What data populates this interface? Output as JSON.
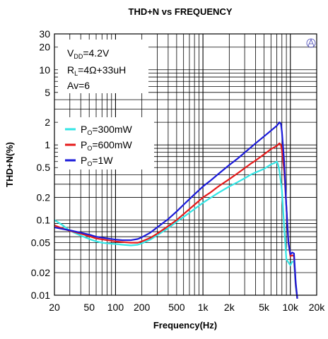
{
  "chart_data": {
    "type": "line",
    "title": "THD+N vs FREQUENCY",
    "xlabel": "Frequency(Hz)",
    "ylabel": "THD+N(%)",
    "x_scale": "log",
    "y_scale": "log",
    "xlim": [
      20,
      20000
    ],
    "ylim": [
      0.01,
      30
    ],
    "grid": true,
    "x_ticks": [
      {
        "v": 20,
        "label": "20"
      },
      {
        "v": 50,
        "label": "50"
      },
      {
        "v": 100,
        "label": "100"
      },
      {
        "v": 200,
        "label": "200"
      },
      {
        "v": 500,
        "label": "500"
      },
      {
        "v": 1000,
        "label": "1k"
      },
      {
        "v": 2000,
        "label": "2k"
      },
      {
        "v": 5000,
        "label": "5k"
      },
      {
        "v": 10000,
        "label": "10k"
      },
      {
        "v": 20000,
        "label": "20k"
      }
    ],
    "y_ticks": [
      {
        "v": 0.01,
        "label": "0.01"
      },
      {
        "v": 0.02,
        "label": "0.02"
      },
      {
        "v": 0.05,
        "label": "0.05"
      },
      {
        "v": 0.1,
        "label": "0.1"
      },
      {
        "v": 0.2,
        "label": "0.2"
      },
      {
        "v": 0.5,
        "label": "0.5"
      },
      {
        "v": 1,
        "label": "1"
      },
      {
        "v": 2,
        "label": "2"
      },
      {
        "v": 5,
        "label": "5"
      },
      {
        "v": 10,
        "label": "10"
      },
      {
        "v": 20,
        "label": "20"
      },
      {
        "v": 30,
        "label": "30"
      }
    ],
    "conditions": {
      "vdd": {
        "main": "V",
        "sub": "DD",
        "rest": "=4.2V"
      },
      "rl": {
        "main": "R",
        "sub": "L",
        "rest": "=4Ω+33uH"
      },
      "av": "Av=6"
    },
    "legend_position": "left-middle",
    "series": [
      {
        "name": {
          "main": "P",
          "sub": "O",
          "rest": "=300mW"
        },
        "color": "#33e5e5",
        "points": [
          [
            20,
            0.1
          ],
          [
            25,
            0.085
          ],
          [
            30,
            0.072
          ],
          [
            40,
            0.062
          ],
          [
            50,
            0.056
          ],
          [
            60,
            0.052
          ],
          [
            70,
            0.05
          ],
          [
            80,
            0.049
          ],
          [
            100,
            0.048
          ],
          [
            120,
            0.047
          ],
          [
            150,
            0.046
          ],
          [
            180,
            0.047
          ],
          [
            200,
            0.049
          ],
          [
            250,
            0.055
          ],
          [
            300,
            0.063
          ],
          [
            400,
            0.078
          ],
          [
            500,
            0.095
          ],
          [
            600,
            0.11
          ],
          [
            700,
            0.125
          ],
          [
            800,
            0.14
          ],
          [
            1000,
            0.17
          ],
          [
            1200,
            0.195
          ],
          [
            1500,
            0.23
          ],
          [
            2000,
            0.28
          ],
          [
            2500,
            0.32
          ],
          [
            3000,
            0.36
          ],
          [
            3500,
            0.4
          ],
          [
            4000,
            0.43
          ],
          [
            5000,
            0.48
          ],
          [
            6000,
            0.55
          ],
          [
            6500,
            0.57
          ],
          [
            7000,
            0.6
          ],
          [
            7200,
            0.56
          ],
          [
            7500,
            0.45
          ],
          [
            8000,
            0.25
          ],
          [
            8500,
            0.08
          ],
          [
            9000,
            0.03
          ],
          [
            10000,
            0.025
          ],
          [
            10500,
            0.028
          ],
          [
            11000,
            0.028
          ],
          [
            11500,
            0.013
          ],
          [
            12000,
            0.009
          ]
        ]
      },
      {
        "name": {
          "main": "P",
          "sub": "O",
          "rest": "=600mW"
        },
        "color": "#e51a1a",
        "points": [
          [
            20,
            0.085
          ],
          [
            25,
            0.077
          ],
          [
            30,
            0.072
          ],
          [
            40,
            0.066
          ],
          [
            50,
            0.061
          ],
          [
            60,
            0.057
          ],
          [
            80,
            0.054
          ],
          [
            100,
            0.052
          ],
          [
            120,
            0.051
          ],
          [
            150,
            0.05
          ],
          [
            180,
            0.05
          ],
          [
            200,
            0.052
          ],
          [
            250,
            0.058
          ],
          [
            300,
            0.066
          ],
          [
            400,
            0.083
          ],
          [
            500,
            0.1
          ],
          [
            600,
            0.12
          ],
          [
            700,
            0.14
          ],
          [
            800,
            0.16
          ],
          [
            1000,
            0.2
          ],
          [
            1200,
            0.23
          ],
          [
            1500,
            0.28
          ],
          [
            2000,
            0.35
          ],
          [
            2500,
            0.42
          ],
          [
            3000,
            0.49
          ],
          [
            3500,
            0.56
          ],
          [
            4000,
            0.62
          ],
          [
            5000,
            0.75
          ],
          [
            6000,
            0.88
          ],
          [
            7000,
            0.97
          ],
          [
            7500,
            1.05
          ],
          [
            7800,
            1.0
          ],
          [
            8000,
            0.85
          ],
          [
            8500,
            0.45
          ],
          [
            9000,
            0.15
          ],
          [
            9500,
            0.05
          ],
          [
            10000,
            0.033
          ],
          [
            10500,
            0.034
          ],
          [
            11000,
            0.033
          ],
          [
            11500,
            0.014
          ],
          [
            12000,
            0.009
          ]
        ]
      },
      {
        "name": {
          "main": "P",
          "sub": "O",
          "rest": "=1W"
        },
        "color": "#1a1ad9",
        "points": [
          [
            20,
            0.08
          ],
          [
            25,
            0.076
          ],
          [
            30,
            0.073
          ],
          [
            40,
            0.068
          ],
          [
            50,
            0.064
          ],
          [
            60,
            0.06
          ],
          [
            80,
            0.057
          ],
          [
            100,
            0.055
          ],
          [
            120,
            0.054
          ],
          [
            150,
            0.054
          ],
          [
            180,
            0.056
          ],
          [
            200,
            0.059
          ],
          [
            250,
            0.068
          ],
          [
            300,
            0.08
          ],
          [
            400,
            0.103
          ],
          [
            500,
            0.13
          ],
          [
            600,
            0.16
          ],
          [
            700,
            0.19
          ],
          [
            800,
            0.22
          ],
          [
            1000,
            0.28
          ],
          [
            1200,
            0.33
          ],
          [
            1500,
            0.41
          ],
          [
            2000,
            0.54
          ],
          [
            2500,
            0.66
          ],
          [
            3000,
            0.79
          ],
          [
            3500,
            0.92
          ],
          [
            4000,
            1.05
          ],
          [
            5000,
            1.3
          ],
          [
            6000,
            1.55
          ],
          [
            7000,
            1.8
          ],
          [
            7500,
            2.0
          ],
          [
            7800,
            1.9
          ],
          [
            8000,
            1.5
          ],
          [
            8500,
            0.6
          ],
          [
            9000,
            0.15
          ],
          [
            9500,
            0.05
          ],
          [
            10000,
            0.035
          ],
          [
            10500,
            0.037
          ],
          [
            11000,
            0.036
          ],
          [
            11500,
            0.015
          ],
          [
            12000,
            0.009
          ]
        ]
      }
    ]
  }
}
